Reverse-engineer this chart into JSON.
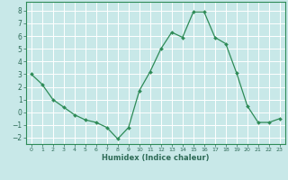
{
  "xlabel": "Humidex (Indice chaleur)",
  "ylabel": "",
  "x": [
    0,
    1,
    2,
    3,
    4,
    5,
    6,
    7,
    8,
    9,
    10,
    11,
    12,
    13,
    14,
    15,
    16,
    17,
    18,
    19,
    20,
    21,
    22,
    23
  ],
  "y": [
    3.0,
    2.2,
    1.0,
    0.4,
    -0.2,
    -0.6,
    -0.8,
    -1.2,
    -2.1,
    -1.2,
    1.7,
    3.2,
    5.0,
    6.3,
    5.9,
    7.9,
    7.9,
    5.9,
    5.4,
    3.1,
    0.5,
    -0.8,
    -0.8,
    -0.5
  ],
  "line_color": "#2e8b57",
  "marker_color": "#2e8b57",
  "bg_color": "#c8e8e8",
  "grid_color": "#ffffff",
  "tick_label_color": "#2e6b57",
  "spine_color": "#2e8b57",
  "xlim": [
    -0.5,
    23.5
  ],
  "ylim": [
    -2.5,
    8.7
  ],
  "yticks": [
    -2,
    -1,
    0,
    1,
    2,
    3,
    4,
    5,
    6,
    7,
    8
  ],
  "xticks": [
    0,
    1,
    2,
    3,
    4,
    5,
    6,
    7,
    8,
    9,
    10,
    11,
    12,
    13,
    14,
    15,
    16,
    17,
    18,
    19,
    20,
    21,
    22,
    23
  ],
  "xlabel_fontsize": 6.0,
  "tick_fontsize_x": 4.5,
  "tick_fontsize_y": 5.5
}
